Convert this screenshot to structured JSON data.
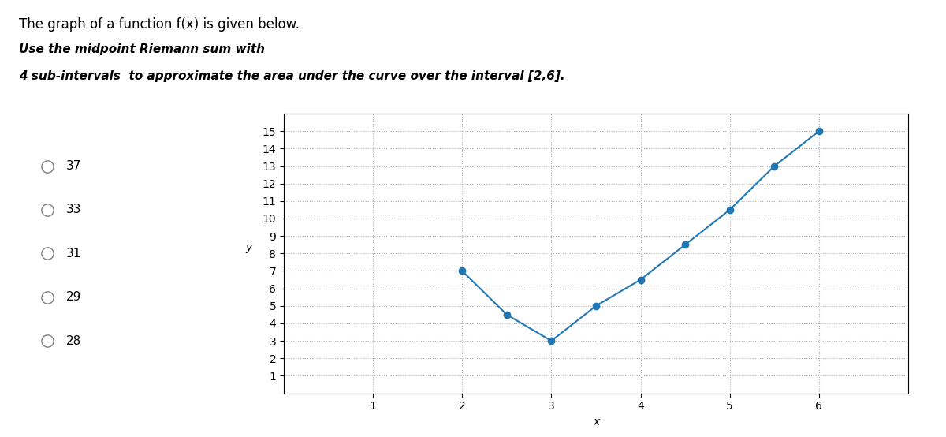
{
  "chart_data": {
    "type": "line",
    "title": "The graph of a function f(x) is given below.",
    "subtitle": [
      "Use the midpoint Riemann sum with",
      "4 sub-intervals  to approximate the area under the curve over the interval [2,6]."
    ],
    "annotations": [
      "37",
      "33",
      "31",
      "29",
      "28"
    ],
    "x": [
      2.0,
      2.5,
      3.0,
      3.5,
      4.0,
      4.5,
      5.0,
      5.5,
      6.0
    ],
    "values": [
      7.0,
      4.5,
      3.0,
      5.0,
      6.5,
      8.5,
      10.5,
      13.0,
      15.0
    ],
    "xlim": [
      0,
      7.0
    ],
    "ylim": [
      0,
      16
    ],
    "xticks": [
      1,
      2,
      3,
      4,
      5,
      6
    ],
    "yticks": [
      1,
      2,
      3,
      4,
      5,
      6,
      7,
      8,
      9,
      10,
      11,
      12,
      13,
      14,
      15
    ],
    "xlabel": "x",
    "ylabel": "y",
    "marker": "o",
    "grid": true
  }
}
